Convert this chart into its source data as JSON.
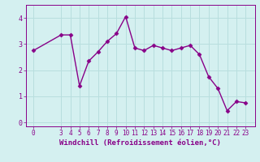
{
  "x_vals": [
    0,
    3,
    4,
    5,
    6,
    7,
    8,
    9,
    10,
    11,
    12,
    13,
    14,
    15,
    16,
    17,
    18,
    19,
    20,
    21,
    22,
    23
  ],
  "y_vals": [
    2.75,
    3.35,
    3.35,
    1.4,
    2.35,
    2.7,
    3.1,
    3.4,
    4.05,
    2.85,
    2.75,
    2.95,
    2.85,
    2.75,
    2.85,
    2.95,
    2.6,
    1.75,
    1.3,
    0.45,
    0.8,
    0.75
  ],
  "x_ticks": [
    0,
    3,
    4,
    5,
    6,
    7,
    8,
    9,
    10,
    11,
    12,
    13,
    14,
    15,
    16,
    17,
    18,
    19,
    20,
    21,
    22,
    23
  ],
  "y_ticks": [
    0,
    1,
    2,
    3,
    4
  ],
  "ylim": [
    -0.15,
    4.5
  ],
  "xlim": [
    -0.8,
    24.0
  ],
  "line_color": "#880088",
  "marker": "D",
  "marker_size": 2.5,
  "bg_color": "#d4f0f0",
  "grid_color": "#b8dede",
  "xlabel": "Windchill (Refroidissement éolien,°C)",
  "xlabel_color": "#880088",
  "tick_color": "#880088",
  "linewidth": 1.0,
  "tick_fontsize": 5.5,
  "xlabel_fontsize": 6.5
}
